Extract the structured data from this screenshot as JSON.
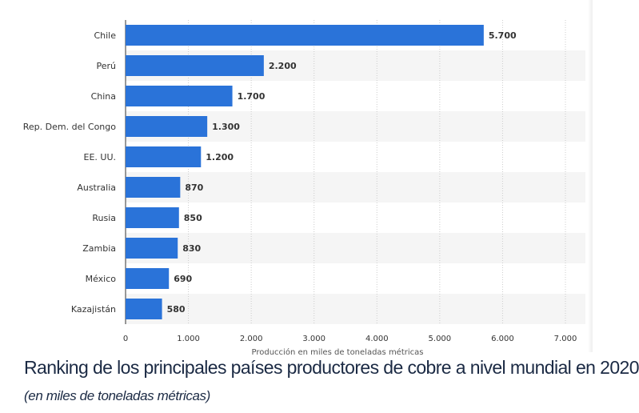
{
  "chart_data": {
    "type": "bar",
    "orientation": "horizontal",
    "title": "Ranking de los principales países productores de cobre a nivel mundial en 2020",
    "subtitle": "(en miles de toneladas métricas)",
    "categories": [
      "Chile",
      "Perú",
      "China",
      "Rep. Dem. del Congo",
      "EE. UU.",
      "Australia",
      "Rusia",
      "Zambia",
      "México",
      "Kazajistán"
    ],
    "values": [
      5700,
      2200,
      1700,
      1300,
      1200,
      870,
      850,
      830,
      690,
      580
    ],
    "value_labels": [
      "5.700",
      "2.200",
      "1.700",
      "1.300",
      "1.200",
      "870",
      "850",
      "830",
      "690",
      "580"
    ],
    "xlim": [
      0,
      7000
    ],
    "xticks": [
      0,
      1000,
      2000,
      3000,
      4000,
      5000,
      6000,
      7000
    ],
    "xtick_labels": [
      "0",
      "1.000",
      "2.000",
      "3.000",
      "4.000",
      "5.000",
      "6.000",
      "7.000"
    ],
    "xlabel": "Producción en miles de toneladas métricas",
    "grid": true,
    "legend": "none",
    "bar_color": "#2a73d9"
  }
}
